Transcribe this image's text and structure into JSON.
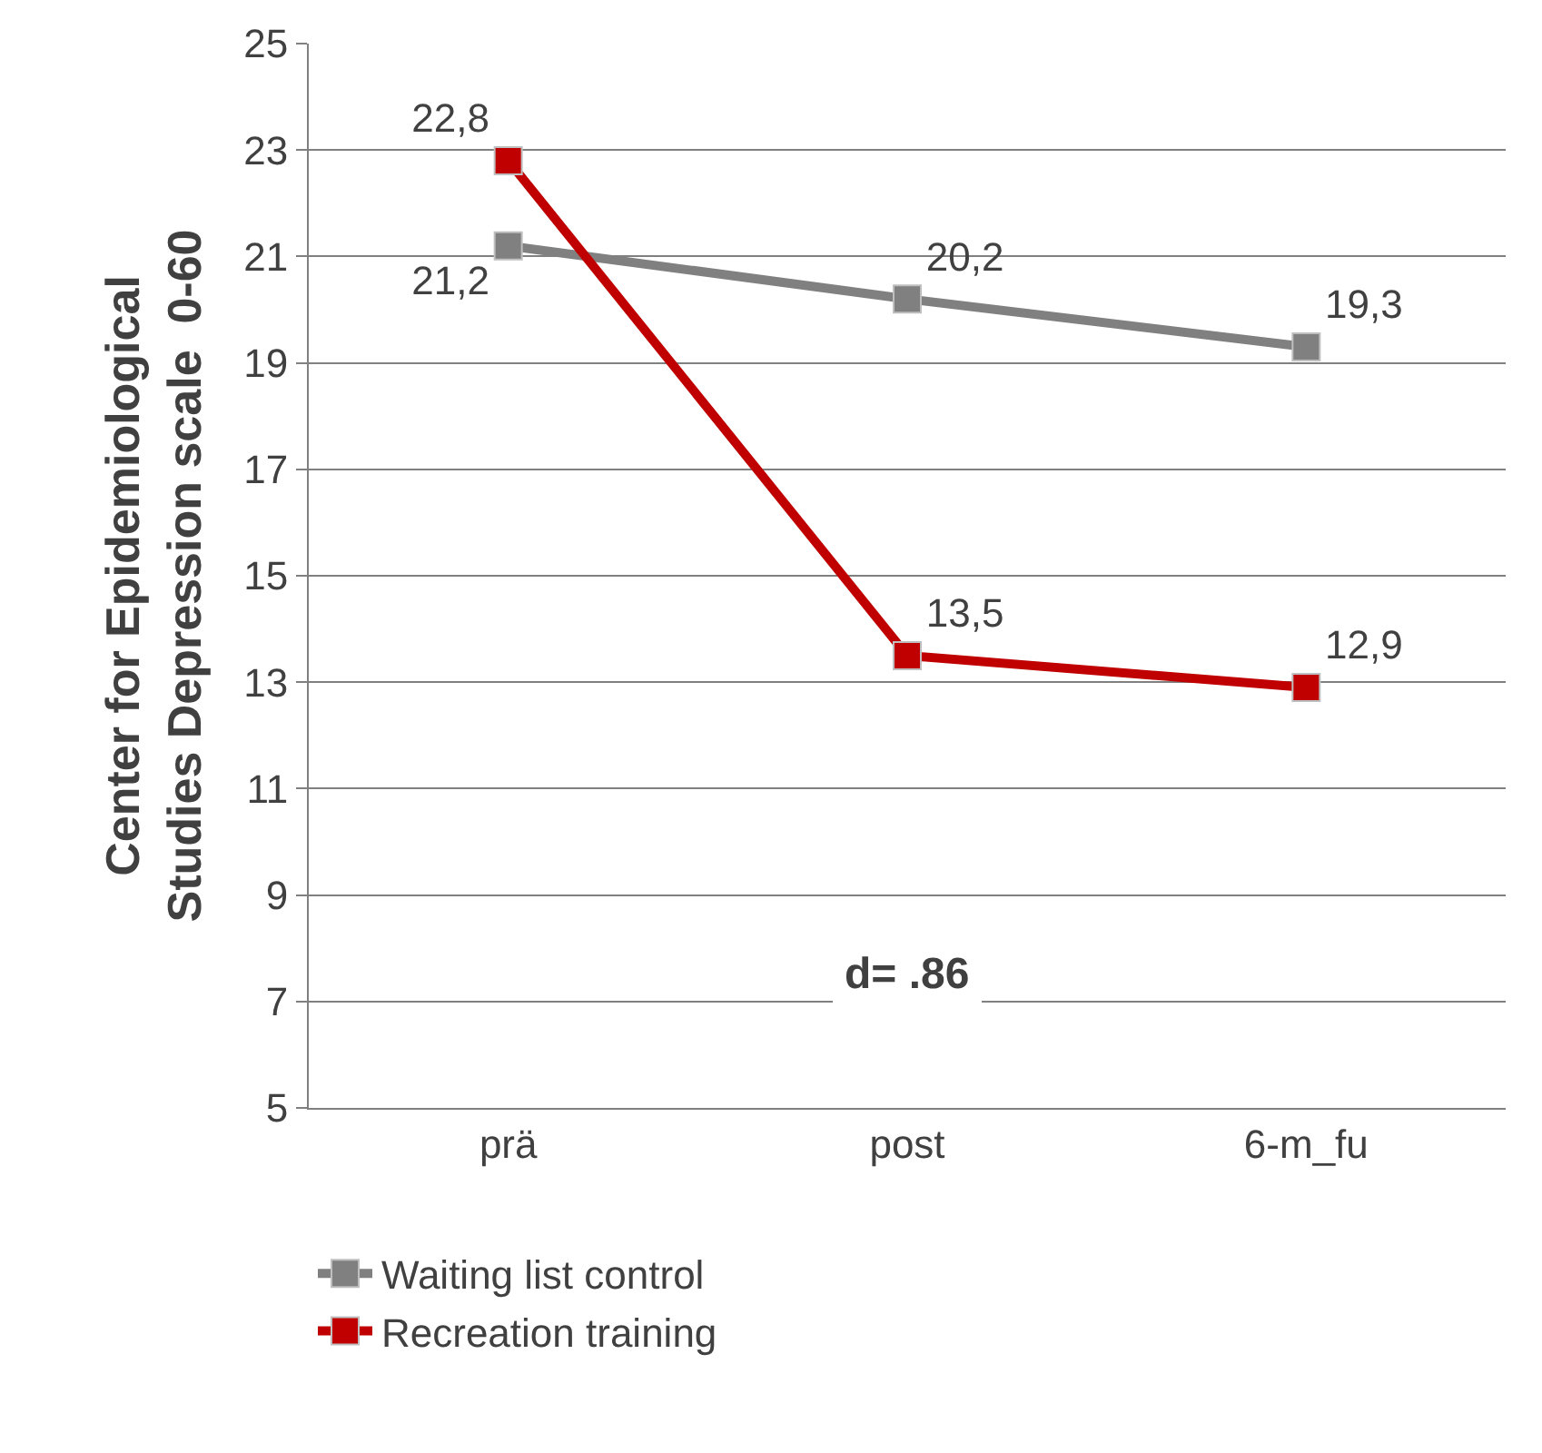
{
  "chart_data": {
    "type": "line",
    "ylabel": "Center for Epidemiological Studies Depression scale  0-60",
    "categories": [
      "prä",
      "post",
      "6-m_fu"
    ],
    "series": [
      {
        "name": "Waiting list control",
        "color": "#808080",
        "values": [
          21.2,
          20.2,
          19.3
        ],
        "value_labels": [
          "21,2",
          "20,2",
          "19,3"
        ]
      },
      {
        "name": "Recreation training",
        "color": "#c00000",
        "values": [
          22.8,
          13.5,
          12.9
        ],
        "value_labels": [
          "22,8",
          "13,5",
          "12,9"
        ]
      }
    ],
    "ylim": [
      5,
      25
    ],
    "yticks": [
      5,
      7,
      9,
      11,
      13,
      15,
      17,
      19,
      21,
      23,
      25
    ],
    "grid": "y",
    "legend": "bottom",
    "marker": "square",
    "line_style": "solid",
    "annotations": [
      "d= .86"
    ]
  }
}
